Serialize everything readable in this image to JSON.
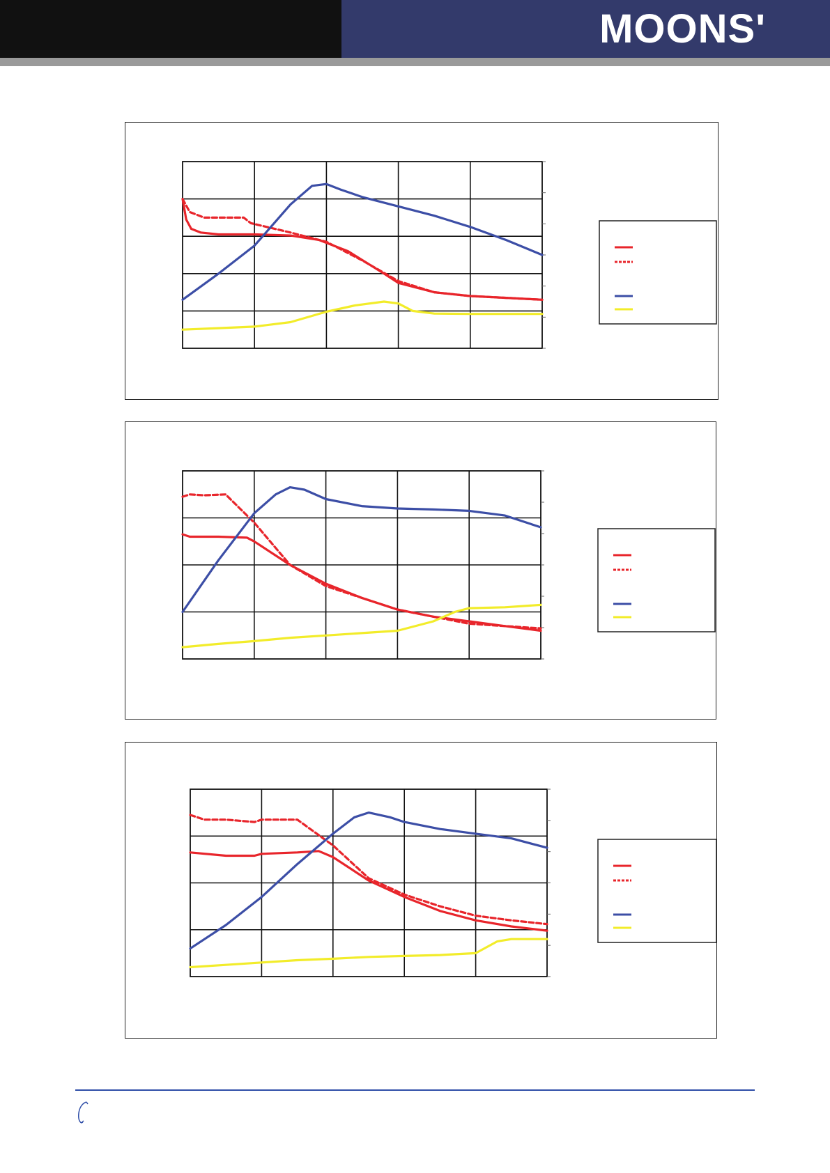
{
  "header": {
    "brand": "MOONS'"
  },
  "colors": {
    "header_dark": "#111111",
    "header_blue": "#333a6b",
    "header_bar": "#9a9a9a",
    "red": "#e8252b",
    "blue": "#3c4ea6",
    "yellow": "#f2ec2a",
    "footer_line": "#2f4ea8"
  },
  "footer": {
    "icon": "phone-icon"
  },
  "chart_data": [
    {
      "type": "line",
      "grid": true,
      "xlim": [
        0,
        5
      ],
      "ylim": [
        0,
        5
      ],
      "series": [
        {
          "color": "#e8252b",
          "style": "solid",
          "x": [
            0,
            0.05,
            0.12,
            0.25,
            0.5,
            1.0,
            1.5,
            1.9,
            2.3,
            2.8,
            3.0,
            3.5,
            4.0,
            4.5,
            5.0
          ],
          "y": [
            4.0,
            3.45,
            3.2,
            3.1,
            3.05,
            3.05,
            3.02,
            2.9,
            2.6,
            2.0,
            1.75,
            1.5,
            1.4,
            1.35,
            1.3
          ]
        },
        {
          "color": "#e8252b",
          "style": "dashed",
          "x": [
            0,
            0.1,
            0.3,
            0.5,
            0.85,
            0.95,
            1.5,
            2.0,
            2.5,
            3.0,
            3.5,
            4.0,
            4.5,
            5.0
          ],
          "y": [
            4.0,
            3.65,
            3.5,
            3.5,
            3.5,
            3.35,
            3.1,
            2.85,
            2.35,
            1.8,
            1.5,
            1.4,
            1.35,
            1.3
          ]
        },
        {
          "color": "#3c4ea6",
          "style": "solid",
          "x": [
            0,
            0.5,
            1.0,
            1.5,
            1.8,
            2.0,
            2.2,
            2.5,
            3.0,
            3.5,
            4.0,
            4.5,
            5.0
          ],
          "y": [
            1.3,
            2.0,
            2.75,
            3.85,
            4.35,
            4.4,
            4.25,
            4.05,
            3.8,
            3.55,
            3.25,
            2.9,
            2.5
          ]
        },
        {
          "color": "#f2ec2a",
          "style": "solid",
          "x": [
            0,
            0.5,
            1.0,
            1.5,
            2.0,
            2.4,
            2.8,
            3.0,
            3.2,
            3.5,
            4.0,
            4.5,
            5.0
          ],
          "y": [
            0.5,
            0.54,
            0.58,
            0.7,
            0.98,
            1.15,
            1.25,
            1.2,
            1.0,
            0.93,
            0.92,
            0.92,
            0.92
          ]
        }
      ]
    },
    {
      "type": "line",
      "grid": true,
      "xlim": [
        0,
        5
      ],
      "ylim": [
        0,
        4
      ],
      "series": [
        {
          "color": "#e8252b",
          "style": "solid",
          "x": [
            0,
            0.1,
            0.5,
            0.9,
            1.0,
            1.5,
            2.0,
            2.5,
            3.0,
            3.5,
            4.0,
            4.5,
            5.0
          ],
          "y": [
            2.65,
            2.6,
            2.6,
            2.58,
            2.5,
            2.0,
            1.6,
            1.3,
            1.05,
            0.9,
            0.8,
            0.7,
            0.6
          ]
        },
        {
          "color": "#e8252b",
          "style": "dashed",
          "x": [
            0,
            0.1,
            0.3,
            0.6,
            1.0,
            1.5,
            2.0,
            2.5,
            3.0,
            3.5,
            4.0,
            4.5,
            5.0
          ],
          "y": [
            3.45,
            3.5,
            3.48,
            3.5,
            2.9,
            2.0,
            1.55,
            1.3,
            1.05,
            0.9,
            0.75,
            0.7,
            0.65
          ]
        },
        {
          "color": "#3c4ea6",
          "style": "solid",
          "x": [
            0,
            0.5,
            1.0,
            1.3,
            1.5,
            1.7,
            2.0,
            2.5,
            3.0,
            3.5,
            4.0,
            4.5,
            5.0
          ],
          "y": [
            1.0,
            2.1,
            3.1,
            3.5,
            3.65,
            3.6,
            3.4,
            3.25,
            3.2,
            3.18,
            3.15,
            3.05,
            2.8
          ]
        },
        {
          "color": "#f2ec2a",
          "style": "solid",
          "x": [
            0,
            0.5,
            1.0,
            1.5,
            2.0,
            2.5,
            3.0,
            3.5,
            3.8,
            4.0,
            4.5,
            5.0
          ],
          "y": [
            0.25,
            0.32,
            0.38,
            0.45,
            0.5,
            0.55,
            0.6,
            0.8,
            1.0,
            1.08,
            1.1,
            1.15
          ]
        }
      ]
    },
    {
      "type": "line",
      "grid": true,
      "xlim": [
        0,
        5
      ],
      "ylim": [
        0,
        4
      ],
      "series": [
        {
          "color": "#e8252b",
          "style": "solid",
          "x": [
            0,
            0.5,
            0.9,
            1.0,
            1.5,
            1.8,
            2.0,
            2.5,
            3.0,
            3.5,
            4.0,
            4.5,
            5.0
          ],
          "y": [
            2.65,
            2.58,
            2.58,
            2.62,
            2.65,
            2.68,
            2.55,
            2.05,
            1.7,
            1.4,
            1.2,
            1.07,
            0.98
          ]
        },
        {
          "color": "#e8252b",
          "style": "dashed",
          "x": [
            0,
            0.2,
            0.5,
            0.9,
            1.0,
            1.5,
            2.0,
            2.5,
            3.0,
            3.5,
            4.0,
            4.5,
            5.0
          ],
          "y": [
            3.45,
            3.35,
            3.35,
            3.3,
            3.35,
            3.35,
            2.8,
            2.1,
            1.75,
            1.5,
            1.3,
            1.2,
            1.12
          ]
        },
        {
          "color": "#3c4ea6",
          "style": "solid",
          "x": [
            0,
            0.5,
            1.0,
            1.5,
            2.0,
            2.3,
            2.5,
            2.8,
            3.0,
            3.5,
            4.0,
            4.5,
            5.0
          ],
          "y": [
            0.6,
            1.1,
            1.7,
            2.4,
            3.05,
            3.4,
            3.5,
            3.4,
            3.3,
            3.15,
            3.05,
            2.95,
            2.75
          ]
        },
        {
          "color": "#f2ec2a",
          "style": "solid",
          "x": [
            0,
            0.5,
            1.0,
            1.5,
            2.0,
            2.5,
            3.0,
            3.5,
            4.0,
            4.3,
            4.5,
            5.0
          ],
          "y": [
            0.2,
            0.25,
            0.3,
            0.35,
            0.38,
            0.42,
            0.44,
            0.46,
            0.5,
            0.75,
            0.8,
            0.8
          ]
        }
      ]
    }
  ]
}
